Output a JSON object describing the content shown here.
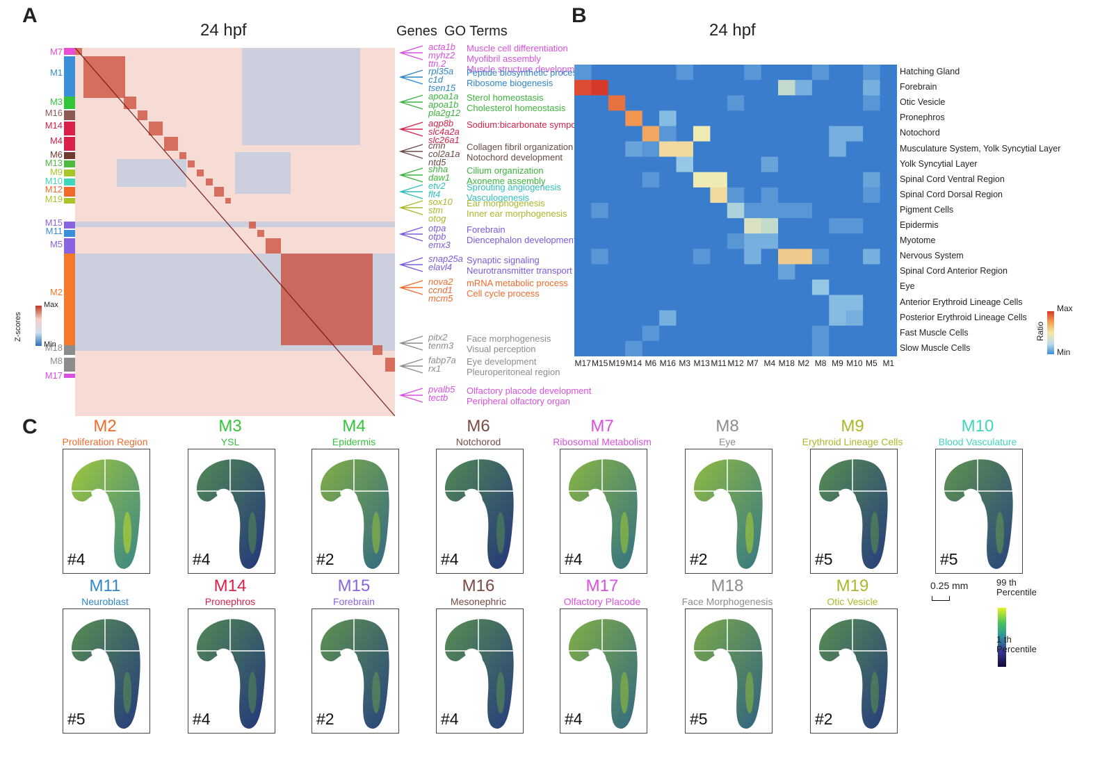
{
  "panelA": {
    "letter": "A",
    "title": "24 hpf",
    "genes_header": "Genes",
    "goterms_header": "GO Terms",
    "zscore_label": "Z-scores",
    "zscore_max": "Max",
    "zscore_min": "Min",
    "modules": [
      {
        "label": "M7",
        "color": "#e84fd6"
      },
      {
        "label": "M1",
        "color": "#3a8fd6"
      },
      {
        "label": "M3",
        "color": "#34c43a"
      },
      {
        "label": "M16",
        "color": "#8c5a55"
      },
      {
        "label": "M14",
        "color": "#d8214a"
      },
      {
        "label": "M4",
        "color": "#d8214a"
      },
      {
        "label": "M6",
        "color": "#6e3a30"
      },
      {
        "label": "M13",
        "color": "#4fb840"
      },
      {
        "label": "M9",
        "color": "#a8c62c"
      },
      {
        "label": "M10",
        "color": "#3fd6bd"
      },
      {
        "label": "M12",
        "color": "#f06a2c"
      },
      {
        "label": "M19",
        "color": "#a8c62c"
      },
      {
        "label": "M15",
        "color": "#8a63e0"
      },
      {
        "label": "M11",
        "color": "#3a8fd6"
      },
      {
        "label": "M5",
        "color": "#8a63e0"
      },
      {
        "label": "M2",
        "color": "#f37a2a"
      },
      {
        "label": "M18",
        "color": "#8c8c8c"
      },
      {
        "label": "M8",
        "color": "#8c8c8c"
      },
      {
        "label": "M17",
        "color": "#d94fe0"
      }
    ],
    "annotations": [
      {
        "genes": [
          "acta1b",
          "myhz2",
          "ttn.2"
        ],
        "terms": [
          "Muscle cell differentiation",
          "Myofibril assembly",
          "Muscle structure development"
        ],
        "color": "#d94fe0"
      },
      {
        "genes": [
          "rpl35a",
          "c1d",
          "tsen15"
        ],
        "terms": [
          "Peptide biosynthetic process",
          "Ribosome biogenesis"
        ],
        "color": "#2f86c8"
      },
      {
        "genes": [
          "apoa1a",
          "apoa1b",
          "pla2g12"
        ],
        "terms": [
          "Sterol homeostasis",
          "Cholesterol homeostasis"
        ],
        "color": "#3cb43c"
      },
      {
        "genes": [
          "aqp8b",
          "slc4a2a",
          "slc26a1"
        ],
        "terms": [
          "Sodium:bicarbonate symporter"
        ],
        "color": "#d8214a"
      },
      {
        "genes": [
          "cmn",
          "col2a1a",
          "ntd5"
        ],
        "terms": [
          "Collagen fibril organization",
          "Notochord development"
        ],
        "color": "#6b4a45"
      },
      {
        "genes": [
          "shha",
          "daw1"
        ],
        "terms": [
          "Cilium organization",
          "Axoneme assembly"
        ],
        "color": "#3cb43c"
      },
      {
        "genes": [
          "etv2",
          "flt4"
        ],
        "terms": [
          "Sprouting angiogenesis",
          "Vasculogenesis"
        ],
        "color": "#2fbfbf"
      },
      {
        "genes": [
          "sox10",
          "stm",
          "otog"
        ],
        "terms": [
          "Ear morphogenesis",
          "Inner ear morphogenesis"
        ],
        "color": "#a8b828"
      },
      {
        "genes": [
          "otpa",
          "otpb",
          "emx3"
        ],
        "terms": [
          "Forebrain",
          "Diencephalon development"
        ],
        "color": "#7a5ae0"
      },
      {
        "genes": [
          "snap25a",
          "elavl4"
        ],
        "terms": [
          "Synaptic signaling",
          "Neurotransmitter transport"
        ],
        "color": "#7a5ae0"
      },
      {
        "genes": [
          "nova2",
          "ccnd1",
          "mcm5"
        ],
        "terms": [
          "mRNA metabolic process",
          "Cell cycle process"
        ],
        "color": "#f06a2c"
      },
      {
        "genes": [
          "pitx2",
          "tenm3"
        ],
        "terms": [
          "Face morphogenesis",
          "Visual perception"
        ],
        "color": "#8c8c8c"
      },
      {
        "genes": [
          "fabp7a",
          "rx1"
        ],
        "terms": [
          "Eye development",
          "Pleuroperitoneal region"
        ],
        "color": "#8c8c8c"
      },
      {
        "genes": [
          "pvalb5",
          "tectb"
        ],
        "terms": [
          "Olfactory placode development",
          "Peripheral olfactory organ"
        ],
        "color": "#d94fe0"
      }
    ]
  },
  "panelB": {
    "letter": "B",
    "title": "24 hpf",
    "colorbar_label": "Ratio",
    "colorbar_max": "Max",
    "colorbar_min": "Min",
    "chart_data": {
      "type": "heatmap",
      "title": "24 hpf",
      "columns": [
        "M17",
        "M15",
        "M19",
        "M14",
        "M6",
        "M16",
        "M3",
        "M13",
        "M11",
        "M12",
        "M7",
        "M4",
        "M18",
        "M2",
        "M8",
        "M9",
        "M10",
        "M5",
        "M1"
      ],
      "rows": [
        "Hatching Gland",
        "Forebrain",
        "Otic Vesicle",
        "Pronephros",
        "Notochord",
        "Musculature System, Yolk Syncytial Layer",
        "Yolk Syncytial Layer",
        "Spinal Cord Ventral Region",
        "Spinal Cord Dorsal Region",
        "Pigment Cells",
        "Epidermis",
        "Myotome",
        "Nervous System",
        "Spinal Cord Anterior Region",
        "Eye",
        "Anterior Erythroid Lineage Cells",
        "Posterior Erythroid Lineage Cells",
        "Fast Muscle Cells",
        "Slow Muscle Cells"
      ],
      "values": [
        [
          0.1,
          0.0,
          0.0,
          0.0,
          0.0,
          0.0,
          0.1,
          0.0,
          0.0,
          0.0,
          0.1,
          0.0,
          0.0,
          0.0,
          0.1,
          0.0,
          0.0,
          0.1,
          0.0
        ],
        [
          0.95,
          1.0,
          0.0,
          0.0,
          0.0,
          0.0,
          0.0,
          0.0,
          0.0,
          0.0,
          0.0,
          0.0,
          0.4,
          0.2,
          0.0,
          0.0,
          0.0,
          0.2,
          0.0
        ],
        [
          0.0,
          0.0,
          0.85,
          0.0,
          0.0,
          0.0,
          0.0,
          0.0,
          0.0,
          0.1,
          0.0,
          0.0,
          0.0,
          0.0,
          0.0,
          0.0,
          0.0,
          0.1,
          0.0
        ],
        [
          0.0,
          0.0,
          0.0,
          0.75,
          0.0,
          0.25,
          0.0,
          0.0,
          0.0,
          0.0,
          0.0,
          0.0,
          0.0,
          0.0,
          0.0,
          0.0,
          0.0,
          0.0,
          0.0
        ],
        [
          0.0,
          0.0,
          0.0,
          0.0,
          0.7,
          0.1,
          0.0,
          0.5,
          0.0,
          0.0,
          0.0,
          0.0,
          0.0,
          0.0,
          0.0,
          0.2,
          0.2,
          0.0,
          0.0
        ],
        [
          0.0,
          0.0,
          0.0,
          0.15,
          0.1,
          0.55,
          0.55,
          0.0,
          0.0,
          0.0,
          0.0,
          0.0,
          0.0,
          0.0,
          0.0,
          0.2,
          0.0,
          0.0,
          0.0
        ],
        [
          0.0,
          0.0,
          0.0,
          0.0,
          0.0,
          0.0,
          0.3,
          0.0,
          0.0,
          0.0,
          0.0,
          0.15,
          0.0,
          0.0,
          0.0,
          0.0,
          0.0,
          0.0,
          0.0
        ],
        [
          0.0,
          0.0,
          0.0,
          0.0,
          0.1,
          0.0,
          0.0,
          0.5,
          0.5,
          0.0,
          0.0,
          0.0,
          0.0,
          0.0,
          0.0,
          0.0,
          0.0,
          0.15,
          0.0
        ],
        [
          0.0,
          0.0,
          0.0,
          0.0,
          0.0,
          0.0,
          0.0,
          0.0,
          0.55,
          0.1,
          0.0,
          0.1,
          0.0,
          0.0,
          0.0,
          0.0,
          0.0,
          0.1,
          0.0
        ],
        [
          0.0,
          0.1,
          0.0,
          0.0,
          0.0,
          0.0,
          0.0,
          0.0,
          0.0,
          0.35,
          0.1,
          0.1,
          0.1,
          0.1,
          0.0,
          0.0,
          0.0,
          0.0,
          0.0
        ],
        [
          0.0,
          0.0,
          0.0,
          0.0,
          0.0,
          0.0,
          0.0,
          0.0,
          0.0,
          0.0,
          0.45,
          0.4,
          0.0,
          0.0,
          0.0,
          0.1,
          0.1,
          0.0,
          0.0
        ],
        [
          0.0,
          0.0,
          0.0,
          0.0,
          0.0,
          0.0,
          0.0,
          0.0,
          0.0,
          0.1,
          0.2,
          0.2,
          0.0,
          0.0,
          0.0,
          0.0,
          0.0,
          0.0,
          0.0
        ],
        [
          0.0,
          0.1,
          0.0,
          0.0,
          0.0,
          0.0,
          0.0,
          0.1,
          0.0,
          0.0,
          0.2,
          0.0,
          0.6,
          0.6,
          0.1,
          0.0,
          0.0,
          0.2,
          0.0
        ],
        [
          0.0,
          0.0,
          0.0,
          0.0,
          0.0,
          0.0,
          0.0,
          0.0,
          0.0,
          0.0,
          0.0,
          0.0,
          0.15,
          0.0,
          0.0,
          0.0,
          0.0,
          0.0,
          0.0
        ],
        [
          0.0,
          0.0,
          0.0,
          0.0,
          0.0,
          0.0,
          0.0,
          0.0,
          0.0,
          0.0,
          0.0,
          0.0,
          0.0,
          0.0,
          0.3,
          0.0,
          0.0,
          0.0,
          0.0
        ],
        [
          0.0,
          0.0,
          0.0,
          0.0,
          0.0,
          0.0,
          0.0,
          0.0,
          0.0,
          0.0,
          0.0,
          0.0,
          0.0,
          0.0,
          0.0,
          0.25,
          0.25,
          0.0,
          0.0
        ],
        [
          0.0,
          0.0,
          0.0,
          0.0,
          0.0,
          0.2,
          0.0,
          0.0,
          0.0,
          0.0,
          0.0,
          0.0,
          0.0,
          0.0,
          0.0,
          0.25,
          0.2,
          0.0,
          0.0
        ],
        [
          0.0,
          0.0,
          0.0,
          0.0,
          0.1,
          0.0,
          0.0,
          0.0,
          0.0,
          0.0,
          0.0,
          0.0,
          0.0,
          0.0,
          0.1,
          0.0,
          0.0,
          0.0,
          0.0
        ],
        [
          0.0,
          0.0,
          0.0,
          0.1,
          0.0,
          0.0,
          0.0,
          0.0,
          0.0,
          0.0,
          0.0,
          0.0,
          0.0,
          0.0,
          0.1,
          0.0,
          0.0,
          0.0,
          0.0
        ]
      ]
    }
  },
  "panelC": {
    "letter": "C",
    "scale_label": "0.25 mm",
    "colorbar_top": "99 th",
    "colorbar_top2": "Percentile",
    "colorbar_bottom": "1 th",
    "colorbar_bottom2": "Percentile",
    "modules": [
      {
        "name": "M2",
        "sub": "Proliferation Region",
        "tag": "#4",
        "color": "#f06a2c",
        "intensity": 0.7
      },
      {
        "name": "M3",
        "sub": "YSL",
        "tag": "#4",
        "color": "#34c43a",
        "intensity": 0.15
      },
      {
        "name": "M4",
        "sub": "Epidermis",
        "tag": "#2",
        "color": "#34c43a",
        "intensity": 0.5
      },
      {
        "name": "M6",
        "sub": "Notchorod",
        "tag": "#4",
        "color": "#7a4a45",
        "intensity": 0.15
      },
      {
        "name": "M7",
        "sub": "Ribosomal Metabolism",
        "tag": "#4",
        "color": "#d94fe0",
        "intensity": 0.55
      },
      {
        "name": "M8",
        "sub": "Eye",
        "tag": "#2",
        "color": "#8c8c8c",
        "intensity": 0.6
      },
      {
        "name": "M9",
        "sub": "Erythroid Lineage Cells",
        "tag": "#5",
        "color": "#a8b828",
        "intensity": 0.2
      },
      {
        "name": "M10",
        "sub": "Blood Vasculature",
        "tag": "#5",
        "color": "#3fd6bd",
        "intensity": 0.25
      },
      {
        "name": "M11",
        "sub": "Neuroblast",
        "tag": "#5",
        "color": "#2f86c8",
        "intensity": 0.2
      },
      {
        "name": "M14",
        "sub": "Pronephros",
        "tag": "#4",
        "color": "#d8214a",
        "intensity": 0.15
      },
      {
        "name": "M15",
        "sub": "Forebrain",
        "tag": "#2",
        "color": "#8a63e0",
        "intensity": 0.25
      },
      {
        "name": "M16",
        "sub": "Mesonephric",
        "tag": "#4",
        "color": "#7a4a45",
        "intensity": 0.2
      },
      {
        "name": "M17",
        "sub": "Olfactory Placode",
        "tag": "#4",
        "color": "#d94fe0",
        "intensity": 0.5
      },
      {
        "name": "M18",
        "sub": "Face Morphogenesis",
        "tag": "#5",
        "color": "#8c8c8c",
        "intensity": 0.45
      },
      {
        "name": "M19",
        "sub": "Otic Vesicle",
        "tag": "#2",
        "color": "#a8b828",
        "intensity": 0.2
      }
    ]
  }
}
